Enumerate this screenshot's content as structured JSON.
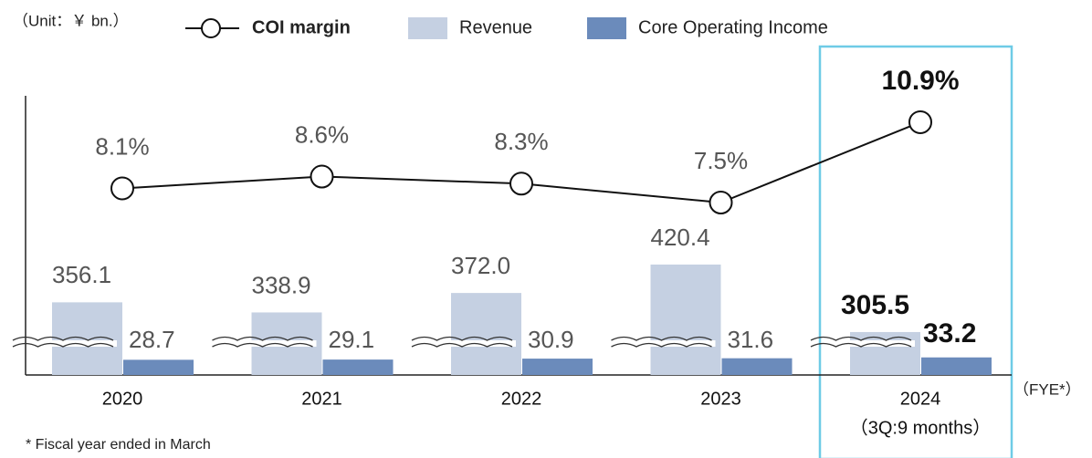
{
  "chart_data": {
    "type": "bar",
    "unit_note": "（Unit：￥ bn.）",
    "x_label": "（FYE*）",
    "footnote": "* Fiscal year ended in March",
    "annotation": "（3Q:9 months）",
    "categories": [
      "2020",
      "2021",
      "2022",
      "2023",
      "2024"
    ],
    "series": [
      {
        "name": "Revenue",
        "type": "bar",
        "color": "#c5d0e2",
        "values": [
          356.1,
          338.9,
          372.0,
          420.4,
          305.5
        ],
        "value_labels": [
          "356.1",
          "338.9",
          "372.0",
          "420.4",
          "305.5"
        ]
      },
      {
        "name": "Core Operating Income",
        "type": "bar",
        "color": "#6b8bbb",
        "values": [
          28.7,
          29.1,
          30.9,
          31.6,
          33.2
        ],
        "value_labels": [
          "28.7",
          "29.1",
          "30.9",
          "31.6",
          "33.2"
        ]
      },
      {
        "name": "COI margin",
        "type": "line",
        "color": "#111111",
        "values": [
          8.1,
          8.6,
          8.3,
          7.5,
          10.9
        ],
        "value_labels": [
          "8.1%",
          "8.6%",
          "8.3%",
          "7.5%",
          "10.9%"
        ]
      }
    ]
  }
}
